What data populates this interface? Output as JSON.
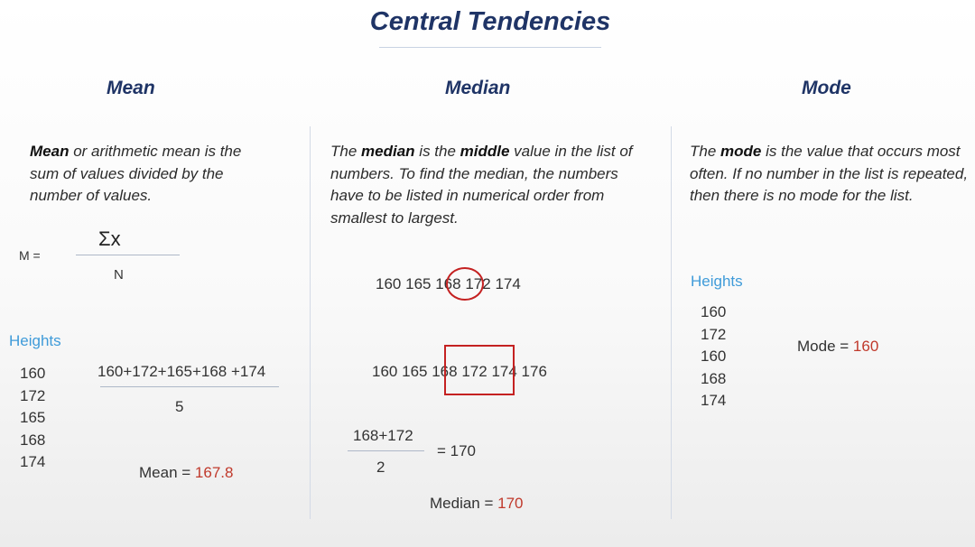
{
  "title": "Central Tendencies",
  "columns": {
    "mean": {
      "heading": "Mean",
      "desc_bold": "Mean",
      "desc_rest": " or arithmetic mean is the sum of values divided by the number of values.",
      "formula_lhs": "M =",
      "formula_num": "Σx",
      "formula_den": "N",
      "heights_label": "Heights",
      "heights": [
        "160",
        "172",
        "165",
        "168",
        "174"
      ],
      "sum_expr": "160+172+165+168 +174",
      "divisor": "5",
      "result_label": "Mean = ",
      "result_value": "167.8"
    },
    "median": {
      "heading": "Median",
      "desc_pre": "The ",
      "desc_bold1": "median",
      "desc_mid": " is the ",
      "desc_bold2": "middle",
      "desc_post": " value in the list of numbers. To find the median, the numbers have to be listed in numerical order from smallest to largest.",
      "odd_list": [
        "160",
        "165",
        "168",
        "172",
        "174"
      ],
      "even_list": [
        "160",
        "165",
        "168",
        "172",
        "174",
        "176"
      ],
      "frac_num": "168+172",
      "frac_den": "2",
      "frac_eq": "= 170",
      "result_label": "Median = ",
      "result_value": "170"
    },
    "mode": {
      "heading": "Mode",
      "desc_pre": "The ",
      "desc_bold": "mode",
      "desc_post": " is the value that occurs most often. If no number in the list is repeated, then there is no mode for the list.",
      "heights_label": "Heights",
      "heights": [
        "160",
        "172",
        "160",
        "168",
        "174"
      ],
      "result_label": "Mode = ",
      "result_value": "160"
    }
  },
  "colors": {
    "heading": "#1f3466",
    "label": "#3f9bd9",
    "result": "#c0392b",
    "highlight": "#c42121"
  }
}
